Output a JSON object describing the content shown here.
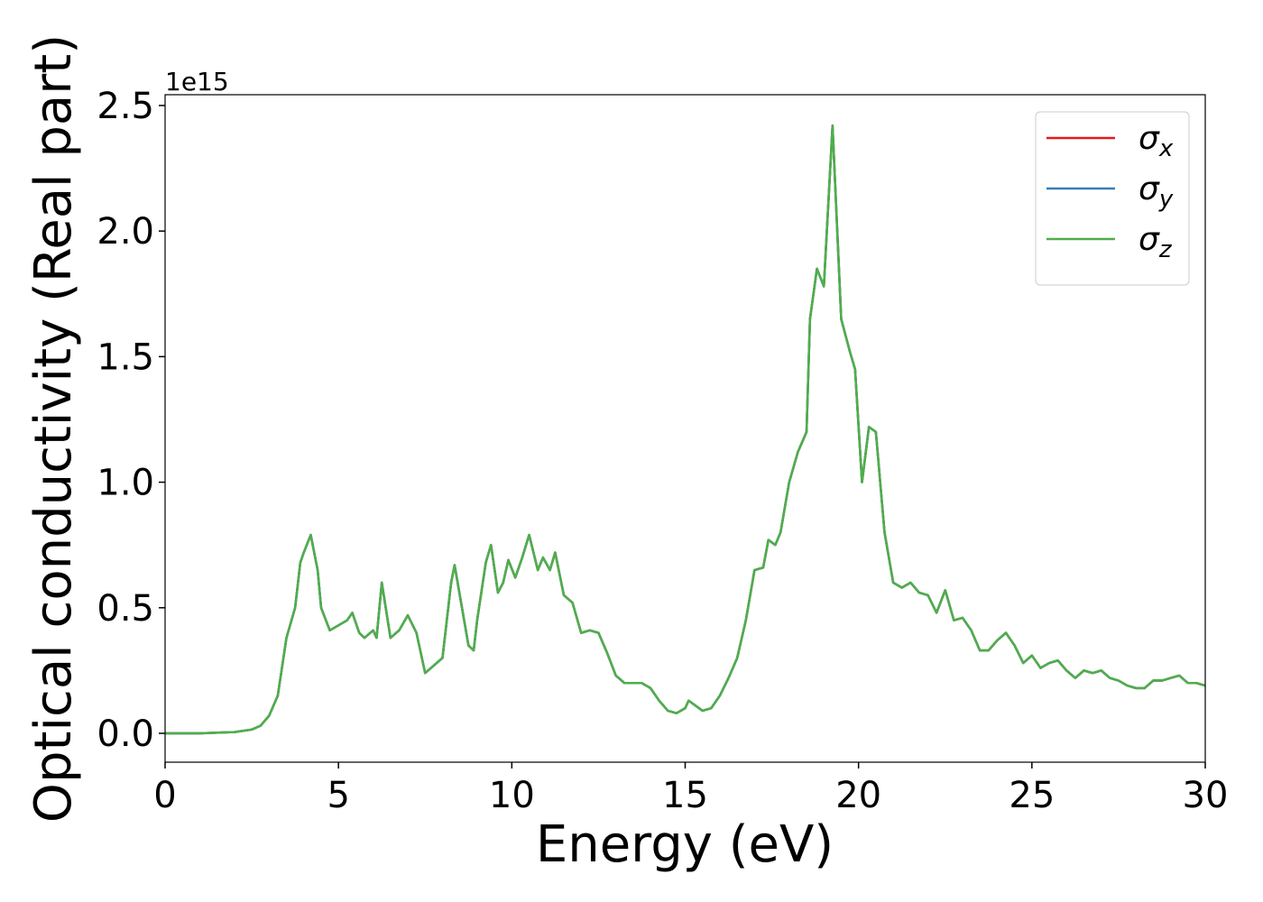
{
  "chart_data": {
    "type": "line",
    "xlabel": "Energy (eV)",
    "ylabel": "Optical conductivity (Real part)",
    "y_offset_label": "1e15",
    "x": [
      0,
      1,
      2,
      2.5,
      2.75,
      3,
      3.25,
      3.5,
      3.75,
      3.9,
      4,
      4.2,
      4.4,
      4.5,
      4.75,
      5,
      5.25,
      5.4,
      5.6,
      5.75,
      6,
      6.1,
      6.25,
      6.5,
      6.75,
      7,
      7.25,
      7.5,
      7.75,
      8,
      8.25,
      8.35,
      8.5,
      8.75,
      8.9,
      9,
      9.25,
      9.4,
      9.6,
      9.75,
      9.9,
      10.1,
      10.3,
      10.5,
      10.75,
      10.9,
      11.1,
      11.25,
      11.5,
      11.75,
      12,
      12.25,
      12.5,
      12.75,
      13,
      13.25,
      13.5,
      13.75,
      14,
      14.25,
      14.5,
      14.75,
      15,
      15.1,
      15.5,
      15.75,
      16,
      16.25,
      16.5,
      16.75,
      17,
      17.25,
      17.4,
      17.6,
      17.75,
      18,
      18.25,
      18.5,
      18.6,
      18.8,
      19,
      19.25,
      19.5,
      19.75,
      19.9,
      20.1,
      20.3,
      20.5,
      20.75,
      21,
      21.25,
      21.5,
      21.75,
      22,
      22.25,
      22.5,
      22.75,
      23,
      23.25,
      23.5,
      23.75,
      24,
      24.25,
      24.5,
      24.75,
      25,
      25.25,
      25.5,
      25.75,
      26,
      26.25,
      26.5,
      26.75,
      27,
      27.25,
      27.5,
      27.75,
      28,
      28.25,
      28.5,
      28.75,
      29,
      29.25,
      29.5,
      29.75,
      30
    ],
    "series": [
      {
        "name": "σx",
        "color": "#e41a1c",
        "values": [
          0,
          0,
          0.005,
          0.015,
          0.03,
          0.07,
          0.15,
          0.38,
          0.5,
          0.68,
          0.72,
          0.79,
          0.65,
          0.5,
          0.41,
          0.43,
          0.45,
          0.48,
          0.4,
          0.38,
          0.41,
          0.38,
          0.6,
          0.38,
          0.41,
          0.47,
          0.4,
          0.24,
          0.27,
          0.3,
          0.6,
          0.67,
          0.55,
          0.35,
          0.33,
          0.45,
          0.68,
          0.75,
          0.56,
          0.6,
          0.69,
          0.62,
          0.7,
          0.79,
          0.65,
          0.7,
          0.65,
          0.72,
          0.55,
          0.52,
          0.4,
          0.41,
          0.4,
          0.32,
          0.23,
          0.2,
          0.2,
          0.2,
          0.18,
          0.13,
          0.09,
          0.08,
          0.1,
          0.13,
          0.09,
          0.1,
          0.15,
          0.22,
          0.3,
          0.45,
          0.65,
          0.66,
          0.77,
          0.75,
          0.8,
          1.0,
          1.12,
          1.2,
          1.65,
          1.85,
          1.78,
          2.42,
          1.65,
          1.52,
          1.45,
          1.0,
          1.22,
          1.2,
          0.8,
          0.6,
          0.58,
          0.6,
          0.56,
          0.55,
          0.48,
          0.57,
          0.45,
          0.46,
          0.41,
          0.33,
          0.33,
          0.37,
          0.4,
          0.35,
          0.28,
          0.31,
          0.26,
          0.28,
          0.29,
          0.25,
          0.22,
          0.25,
          0.24,
          0.25,
          0.22,
          0.21,
          0.19,
          0.18,
          0.18,
          0.21,
          0.21,
          0.22,
          0.23,
          0.2,
          0.2,
          0.19
        ]
      },
      {
        "name": "σy",
        "color": "#377eb8",
        "values": [
          0,
          0,
          0.005,
          0.015,
          0.03,
          0.07,
          0.15,
          0.38,
          0.5,
          0.68,
          0.72,
          0.79,
          0.65,
          0.5,
          0.41,
          0.43,
          0.45,
          0.48,
          0.4,
          0.38,
          0.41,
          0.38,
          0.6,
          0.38,
          0.41,
          0.47,
          0.4,
          0.24,
          0.27,
          0.3,
          0.6,
          0.67,
          0.55,
          0.35,
          0.33,
          0.45,
          0.68,
          0.75,
          0.56,
          0.6,
          0.69,
          0.62,
          0.7,
          0.79,
          0.65,
          0.7,
          0.65,
          0.72,
          0.55,
          0.52,
          0.4,
          0.41,
          0.4,
          0.32,
          0.23,
          0.2,
          0.2,
          0.2,
          0.18,
          0.13,
          0.09,
          0.08,
          0.1,
          0.13,
          0.09,
          0.1,
          0.15,
          0.22,
          0.3,
          0.45,
          0.65,
          0.66,
          0.77,
          0.75,
          0.8,
          1.0,
          1.12,
          1.2,
          1.65,
          1.85,
          1.78,
          2.42,
          1.65,
          1.52,
          1.45,
          1.0,
          1.22,
          1.2,
          0.8,
          0.6,
          0.58,
          0.6,
          0.56,
          0.55,
          0.48,
          0.57,
          0.45,
          0.46,
          0.41,
          0.33,
          0.33,
          0.37,
          0.4,
          0.35,
          0.28,
          0.31,
          0.26,
          0.28,
          0.29,
          0.25,
          0.22,
          0.25,
          0.24,
          0.25,
          0.22,
          0.21,
          0.19,
          0.18,
          0.18,
          0.21,
          0.21,
          0.22,
          0.23,
          0.2,
          0.2,
          0.19
        ]
      },
      {
        "name": "σz",
        "color": "#4daf4a",
        "values": [
          0,
          0,
          0.005,
          0.015,
          0.03,
          0.07,
          0.15,
          0.38,
          0.5,
          0.68,
          0.72,
          0.79,
          0.65,
          0.5,
          0.41,
          0.43,
          0.45,
          0.48,
          0.4,
          0.38,
          0.41,
          0.38,
          0.6,
          0.38,
          0.41,
          0.47,
          0.4,
          0.24,
          0.27,
          0.3,
          0.6,
          0.67,
          0.55,
          0.35,
          0.33,
          0.45,
          0.68,
          0.75,
          0.56,
          0.6,
          0.69,
          0.62,
          0.7,
          0.79,
          0.65,
          0.7,
          0.65,
          0.72,
          0.55,
          0.52,
          0.4,
          0.41,
          0.4,
          0.32,
          0.23,
          0.2,
          0.2,
          0.2,
          0.18,
          0.13,
          0.09,
          0.08,
          0.1,
          0.13,
          0.09,
          0.1,
          0.15,
          0.22,
          0.3,
          0.45,
          0.65,
          0.66,
          0.77,
          0.75,
          0.8,
          1.0,
          1.12,
          1.2,
          1.65,
          1.85,
          1.78,
          2.42,
          1.65,
          1.52,
          1.45,
          1.0,
          1.22,
          1.2,
          0.8,
          0.6,
          0.58,
          0.6,
          0.56,
          0.55,
          0.48,
          0.57,
          0.45,
          0.46,
          0.41,
          0.33,
          0.33,
          0.37,
          0.4,
          0.35,
          0.28,
          0.31,
          0.26,
          0.28,
          0.29,
          0.25,
          0.22,
          0.25,
          0.24,
          0.25,
          0.22,
          0.21,
          0.19,
          0.18,
          0.18,
          0.21,
          0.21,
          0.22,
          0.23,
          0.2,
          0.2,
          0.19
        ]
      }
    ],
    "xlim": [
      0,
      30
    ],
    "xticks": [
      0,
      5,
      10,
      15,
      20,
      25,
      30
    ],
    "ylim": [
      -0.115,
      2.543
    ],
    "yticks": [
      {
        "value": 0,
        "label": "0.0"
      },
      0.5,
      {
        "value": 1,
        "label": "1.0"
      },
      1.5,
      {
        "value": 2,
        "label": "2.0"
      },
      2.5
    ],
    "grid": false,
    "legend": "upper right"
  }
}
